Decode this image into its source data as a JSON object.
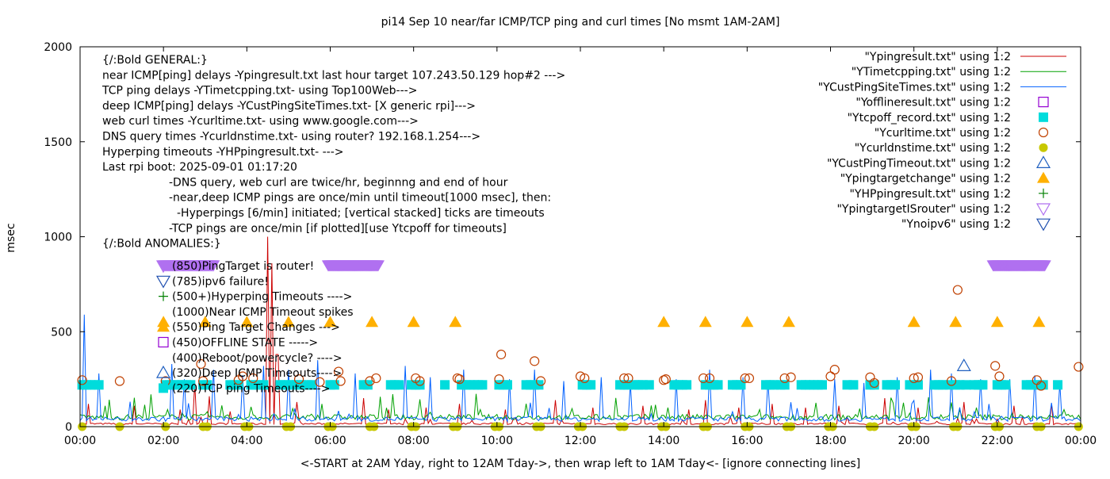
{
  "chart_data": {
    "type": "line",
    "title": "pi14 Sep 10  near/far ICMP/TCP ping and curl times [No msmt 1AM-2AM]",
    "xlabel": "<-START at 2AM Yday, right to 12AM Tday->, then wrap left to 1AM Tday<- [ignore connecting lines]",
    "ylabel": "msec",
    "xlim": [
      0,
      24
    ],
    "ylim": [
      0,
      2000
    ],
    "grid": false,
    "legend_position": "top-right",
    "x_ticks": [
      {
        "v": 0,
        "label": "00:00"
      },
      {
        "v": 2,
        "label": "02:00"
      },
      {
        "v": 4,
        "label": "04:00"
      },
      {
        "v": 6,
        "label": "06:00"
      },
      {
        "v": 8,
        "label": "08:00"
      },
      {
        "v": 10,
        "label": "10:00"
      },
      {
        "v": 12,
        "label": "12:00"
      },
      {
        "v": 14,
        "label": "14:00"
      },
      {
        "v": 16,
        "label": "16:00"
      },
      {
        "v": 18,
        "label": "18:00"
      },
      {
        "v": 20,
        "label": "20:00"
      },
      {
        "v": 22,
        "label": "22:00"
      },
      {
        "v": 24,
        "label": "00:00"
      }
    ],
    "y_ticks": [
      {
        "v": 0,
        "label": "0"
      },
      {
        "v": 500,
        "label": "500"
      },
      {
        "v": 1000,
        "label": "1000"
      },
      {
        "v": 1500,
        "label": "1500"
      },
      {
        "v": 2000,
        "label": "2000"
      }
    ],
    "annotation_lines": [
      "{/:Bold GENERAL:}",
      "near ICMP[ping] delays -Ypingresult.txt last hour target 107.243.50.129 hop#2 --->",
      "TCP ping delays -YTimetcpping.txt- using Top100Web--->",
      "deep ICMP[ping] delays -YCustPingSiteTimes.txt- [X generic rpi]--->",
      "web curl times -Ycurltime.txt- using www.google.com--->",
      "DNS query times -Ycurldnstime.txt- using router? 192.168.1.254--->",
      "Hyperping timeouts -YHPpingresult.txt- --->",
      "Last rpi boot: 2025-09-01 01:17:20",
      "-DNS query, web curl are twice/hr, beginnng and end of hour",
      "-near,deep ICMP pings are once/min until timeout[1000 msec], then:",
      "-Hyperpings [6/min] initiated; [vertical stacked] ticks are timeouts",
      "-TCP pings are once/min [if plotted][use Ytcpoff for timeouts]",
      "{/:Bold ANOMALIES:}"
    ],
    "anomaly_lines": [
      {
        "label": "(850)PingTarget is router!",
        "marker": "triangle-down-open-violet"
      },
      {
        "label": "(785)ipv6 failure!",
        "marker": "triangle-down-open-blue"
      },
      {
        "label": "(500+)Hyperping Timeouts ---->",
        "marker": "plus-green"
      },
      {
        "label": "(1000)Near ICMP Timeout spikes",
        "marker": ""
      },
      {
        "label": "(550)Ping Target Changes --->",
        "marker": "triangle-up-filled-orange"
      },
      {
        "label": "(450)OFFLINE STATE ----->",
        "marker": "square-open-purple"
      },
      {
        "label": "(400)Reboot/powercycle? ---->",
        "marker": ""
      },
      {
        "label": "(320)Deep ICMP Timeouts---->",
        "marker": "triangle-up-open-blue"
      },
      {
        "label": "(220)TCP ping Timeouts---->",
        "marker": "square-filled-cyan"
      }
    ],
    "series": [
      {
        "name": "\"Ypingresult.txt\" using 1:2",
        "style": "line",
        "color": "#cc0000",
        "baseline": 15,
        "spikes": [
          [
            0.2,
            120
          ],
          [
            1.3,
            110
          ],
          [
            2.4,
            90
          ],
          [
            2.75,
            230
          ],
          [
            3.1,
            160
          ],
          [
            3.6,
            80
          ],
          [
            4.5,
            1000
          ],
          [
            4.6,
            860
          ],
          [
            4.72,
            380
          ],
          [
            5.2,
            130
          ],
          [
            6.1,
            110
          ],
          [
            6.8,
            150
          ],
          [
            7.4,
            90
          ],
          [
            8.3,
            100
          ],
          [
            9.1,
            120
          ],
          [
            10.2,
            90
          ],
          [
            11.4,
            140
          ],
          [
            12.3,
            100
          ],
          [
            13.5,
            110
          ],
          [
            14.6,
            90
          ],
          [
            15.0,
            140
          ],
          [
            15.8,
            100
          ],
          [
            16.6,
            120
          ],
          [
            17.4,
            100
          ],
          [
            18.2,
            110
          ],
          [
            19.3,
            150
          ],
          [
            20.1,
            100
          ],
          [
            21.2,
            130
          ],
          [
            22.4,
            110
          ],
          [
            23.3,
            120
          ]
        ]
      },
      {
        "name": "\"YTimetcpping.txt\" using 1:2",
        "style": "line",
        "color": "#00a000",
        "baseline": 50,
        "spikes": [
          [
            0.6,
            110
          ],
          [
            2.1,
            90
          ],
          [
            3.4,
            100
          ],
          [
            5.1,
            95
          ],
          [
            7.2,
            100
          ],
          [
            9.6,
            90
          ],
          [
            11.8,
            95
          ],
          [
            14.1,
            100
          ],
          [
            16.3,
            90
          ],
          [
            18.7,
            95
          ],
          [
            21.5,
            100
          ],
          [
            23.6,
            90
          ]
        ]
      },
      {
        "name": "\"YCustPingSiteTimes.txt\" using 1:2",
        "style": "line",
        "color": "#0060ff",
        "baseline": 40,
        "spikes": [
          [
            0.1,
            590
          ],
          [
            0.45,
            280
          ],
          [
            2.2,
            330
          ],
          [
            2.5,
            250
          ],
          [
            3.2,
            300
          ],
          [
            3.9,
            270
          ],
          [
            4.4,
            320
          ],
          [
            5.0,
            300
          ],
          [
            5.7,
            350
          ],
          [
            6.2,
            300
          ],
          [
            6.6,
            280
          ],
          [
            7.8,
            320
          ],
          [
            8.4,
            260
          ],
          [
            9.2,
            300
          ],
          [
            10.3,
            250
          ],
          [
            10.9,
            300
          ],
          [
            11.6,
            240
          ],
          [
            12.5,
            260
          ],
          [
            13.2,
            230
          ],
          [
            14.3,
            250
          ],
          [
            15.1,
            300
          ],
          [
            15.9,
            260
          ],
          [
            16.5,
            240
          ],
          [
            17.2,
            270
          ],
          [
            18.1,
            250
          ],
          [
            18.8,
            230
          ],
          [
            19.6,
            260
          ],
          [
            20.4,
            300
          ],
          [
            20.9,
            280
          ],
          [
            21.6,
            250
          ],
          [
            22.3,
            250
          ],
          [
            22.9,
            270
          ],
          [
            23.5,
            230
          ]
        ]
      },
      {
        "name": "\"Yofflineresult.txt\" using 1:2",
        "style": "square-open",
        "color": "#9400d3",
        "values": []
      },
      {
        "name": "\"Ytcpoff_record.txt\" using 1:2",
        "style": "square-filled",
        "color": "#00dcdc",
        "y": 220,
        "x": [
          0.05,
          0.15,
          0.25,
          0.35,
          0.45,
          2.05,
          2.15,
          2.25,
          2.35,
          2.45,
          2.55,
          2.65,
          2.95,
          3.05,
          3.6,
          3.7,
          3.8,
          4.1,
          4.2,
          4.3,
          4.4,
          4.8,
          4.9,
          5.0,
          5.1,
          5.2,
          5.3,
          5.45,
          5.55,
          6.0,
          6.1,
          6.8,
          6.9,
          7.45,
          7.55,
          7.65,
          7.95,
          8.05,
          8.15,
          8.75,
          9.15,
          9.25,
          9.35,
          9.45,
          9.55,
          9.65,
          10.05,
          10.15,
          10.25,
          10.7,
          10.8,
          10.9,
          11.0,
          12.05,
          12.15,
          12.25,
          12.95,
          13.05,
          13.15,
          13.3,
          13.4,
          13.5,
          13.65,
          14.25,
          14.35,
          14.45,
          14.55,
          15.0,
          15.1,
          15.2,
          15.3,
          15.65,
          15.75,
          15.85,
          16.45,
          16.55,
          16.65,
          16.8,
          16.9,
          17.3,
          17.4,
          17.5,
          17.6,
          17.7,
          17.8,
          18.4,
          18.55,
          18.95,
          19.05,
          19.35,
          19.45,
          19.55,
          19.9,
          20.0,
          20.1,
          20.5,
          20.6,
          20.7,
          20.85,
          21.0,
          21.1,
          21.25,
          21.45,
          21.55,
          21.65,
          22.0,
          22.1,
          22.2,
          22.7,
          22.8,
          22.9,
          23.0,
          23.1,
          23.45
        ]
      },
      {
        "name": "\"Ycurltime.txt\" using 1:2",
        "style": "circle-open",
        "color": "#c04000",
        "points": [
          [
            0.05,
            245
          ],
          [
            0.95,
            240
          ],
          [
            2.05,
            240
          ],
          [
            2.9,
            330
          ],
          [
            2.95,
            240
          ],
          [
            3.8,
            245
          ],
          [
            3.9,
            265
          ],
          [
            4.15,
            255
          ],
          [
            5.25,
            250
          ],
          [
            5.75,
            235
          ],
          [
            6.2,
            290
          ],
          [
            6.25,
            240
          ],
          [
            6.95,
            240
          ],
          [
            7.1,
            255
          ],
          [
            8.05,
            255
          ],
          [
            8.15,
            240
          ],
          [
            9.05,
            255
          ],
          [
            9.1,
            250
          ],
          [
            10.05,
            250
          ],
          [
            10.1,
            380
          ],
          [
            10.9,
            345
          ],
          [
            11.05,
            240
          ],
          [
            12.0,
            265
          ],
          [
            12.1,
            255
          ],
          [
            13.05,
            255
          ],
          [
            13.15,
            255
          ],
          [
            14.0,
            245
          ],
          [
            14.05,
            250
          ],
          [
            14.95,
            255
          ],
          [
            15.1,
            255
          ],
          [
            15.95,
            255
          ],
          [
            16.05,
            255
          ],
          [
            16.9,
            255
          ],
          [
            17.05,
            260
          ],
          [
            18.0,
            265
          ],
          [
            18.1,
            300
          ],
          [
            18.95,
            260
          ],
          [
            19.05,
            230
          ],
          [
            20.0,
            255
          ],
          [
            20.1,
            260
          ],
          [
            20.9,
            240
          ],
          [
            21.05,
            720
          ],
          [
            21.95,
            320
          ],
          [
            22.05,
            265
          ],
          [
            22.95,
            245
          ],
          [
            23.05,
            215
          ],
          [
            23.95,
            315
          ]
        ]
      },
      {
        "name": "\"Ycurldnstime.txt\" using 1:2",
        "style": "circle-filled",
        "color": "#c8c800",
        "y": 0,
        "x": [
          0.05,
          0.95,
          2.05,
          2.95,
          3.05,
          3.95,
          4.05,
          4.95,
          5.05,
          5.95,
          6.05,
          6.95,
          7.05,
          7.95,
          8.05,
          8.95,
          9.05,
          9.95,
          10.05,
          10.95,
          11.05,
          11.95,
          12.05,
          12.95,
          13.05,
          13.95,
          14.05,
          14.95,
          15.05,
          15.95,
          16.05,
          16.95,
          17.05,
          17.95,
          18.05,
          18.95,
          19.05,
          19.95,
          20.05,
          20.95,
          21.05,
          21.95,
          22.05,
          22.95,
          23.05,
          23.95
        ]
      },
      {
        "name": "\"YCustPingTimeout.txt\" using 1:2",
        "style": "triangle-up-open",
        "color": "#2060c0",
        "points": [
          [
            21.2,
            320
          ]
        ]
      },
      {
        "name": "\"Ypingtargetchange\" using 1:2",
        "style": "triangle-up-filled",
        "color": "#ffb000",
        "y": 550,
        "x": [
          2.0,
          3.0,
          4.0,
          5.0,
          6.0,
          7.0,
          8.0,
          9.0,
          14.0,
          15.0,
          16.0,
          17.0,
          20.0,
          21.0,
          22.0,
          23.0
        ]
      },
      {
        "name": "\"YHPpingresult.txt\" using 1:2",
        "style": "plus",
        "color": "#008000",
        "values": []
      },
      {
        "name": "\"YpingtargetISrouter\" using 1:2",
        "style": "triangle-down-open",
        "color": "#b070f0",
        "y": 850,
        "ranges": [
          [
            2.0,
            3.2
          ],
          [
            5.95,
            7.15
          ],
          [
            21.9,
            23.15
          ]
        ]
      },
      {
        "name": "\"Ynoipv6\" using 1:2",
        "style": "triangle-down-open",
        "color": "#2050b0",
        "values": []
      }
    ]
  }
}
